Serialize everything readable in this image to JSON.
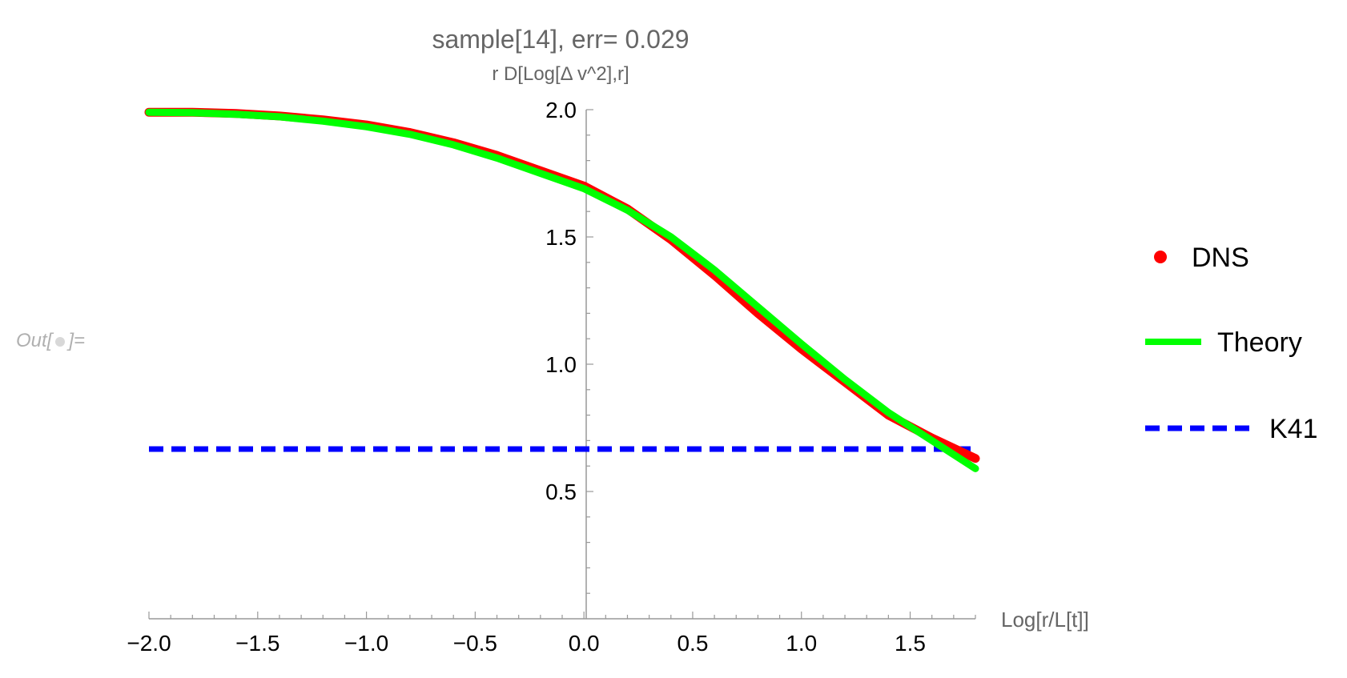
{
  "cell_label": {
    "prefix": "Out[",
    "suffix": "]="
  },
  "chart_data": {
    "type": "line",
    "title": "sample[14], err= 0.029",
    "ylabel": "r D[Log[Δ v^2],r]",
    "xlabel": "Log[r/L[t]]",
    "xlim": [
      -2.0,
      1.8
    ],
    "ylim": [
      0.0,
      2.0
    ],
    "xticks": [
      -2.0,
      -1.5,
      -1.0,
      -0.5,
      0.0,
      0.5,
      1.0,
      1.5
    ],
    "xtick_labels": [
      "−2.0",
      "−1.5",
      "−1.0",
      "−0.5",
      "0.0",
      "0.5",
      "1.0",
      "1.5"
    ],
    "yticks": [
      0.5,
      1.0,
      1.5,
      2.0
    ],
    "ytick_labels": [
      "0.5",
      "1.0",
      "1.5",
      "2.0"
    ],
    "grid": false,
    "legend_position": "right",
    "series": [
      {
        "name": "DNS",
        "style": "points",
        "color": "#ff0000",
        "x": [
          -2.0,
          -1.8,
          -1.6,
          -1.4,
          -1.2,
          -1.0,
          -0.8,
          -0.6,
          -0.4,
          -0.2,
          0.0,
          0.2,
          0.4,
          0.6,
          0.8,
          1.0,
          1.2,
          1.4,
          1.6,
          1.8
        ],
        "y": [
          1.99,
          1.99,
          1.985,
          1.975,
          1.96,
          1.94,
          1.91,
          1.87,
          1.82,
          1.76,
          1.7,
          1.61,
          1.49,
          1.35,
          1.2,
          1.06,
          0.93,
          0.8,
          0.71,
          0.63
        ]
      },
      {
        "name": "Theory",
        "style": "line",
        "color": "#00ff00",
        "x": [
          -2.0,
          -1.8,
          -1.6,
          -1.4,
          -1.2,
          -1.0,
          -0.8,
          -0.6,
          -0.4,
          -0.2,
          0.0,
          0.2,
          0.4,
          0.6,
          0.8,
          1.0,
          1.2,
          1.4,
          1.6,
          1.8
        ],
        "y": [
          1.99,
          1.988,
          1.982,
          1.972,
          1.955,
          1.933,
          1.903,
          1.862,
          1.81,
          1.75,
          1.69,
          1.605,
          1.5,
          1.37,
          1.225,
          1.08,
          0.94,
          0.81,
          0.7,
          0.59
        ]
      },
      {
        "name": "K41",
        "style": "dashed",
        "color": "#0000ff",
        "x": [
          -2.0,
          1.8
        ],
        "y": [
          0.6667,
          0.6667
        ]
      }
    ]
  }
}
